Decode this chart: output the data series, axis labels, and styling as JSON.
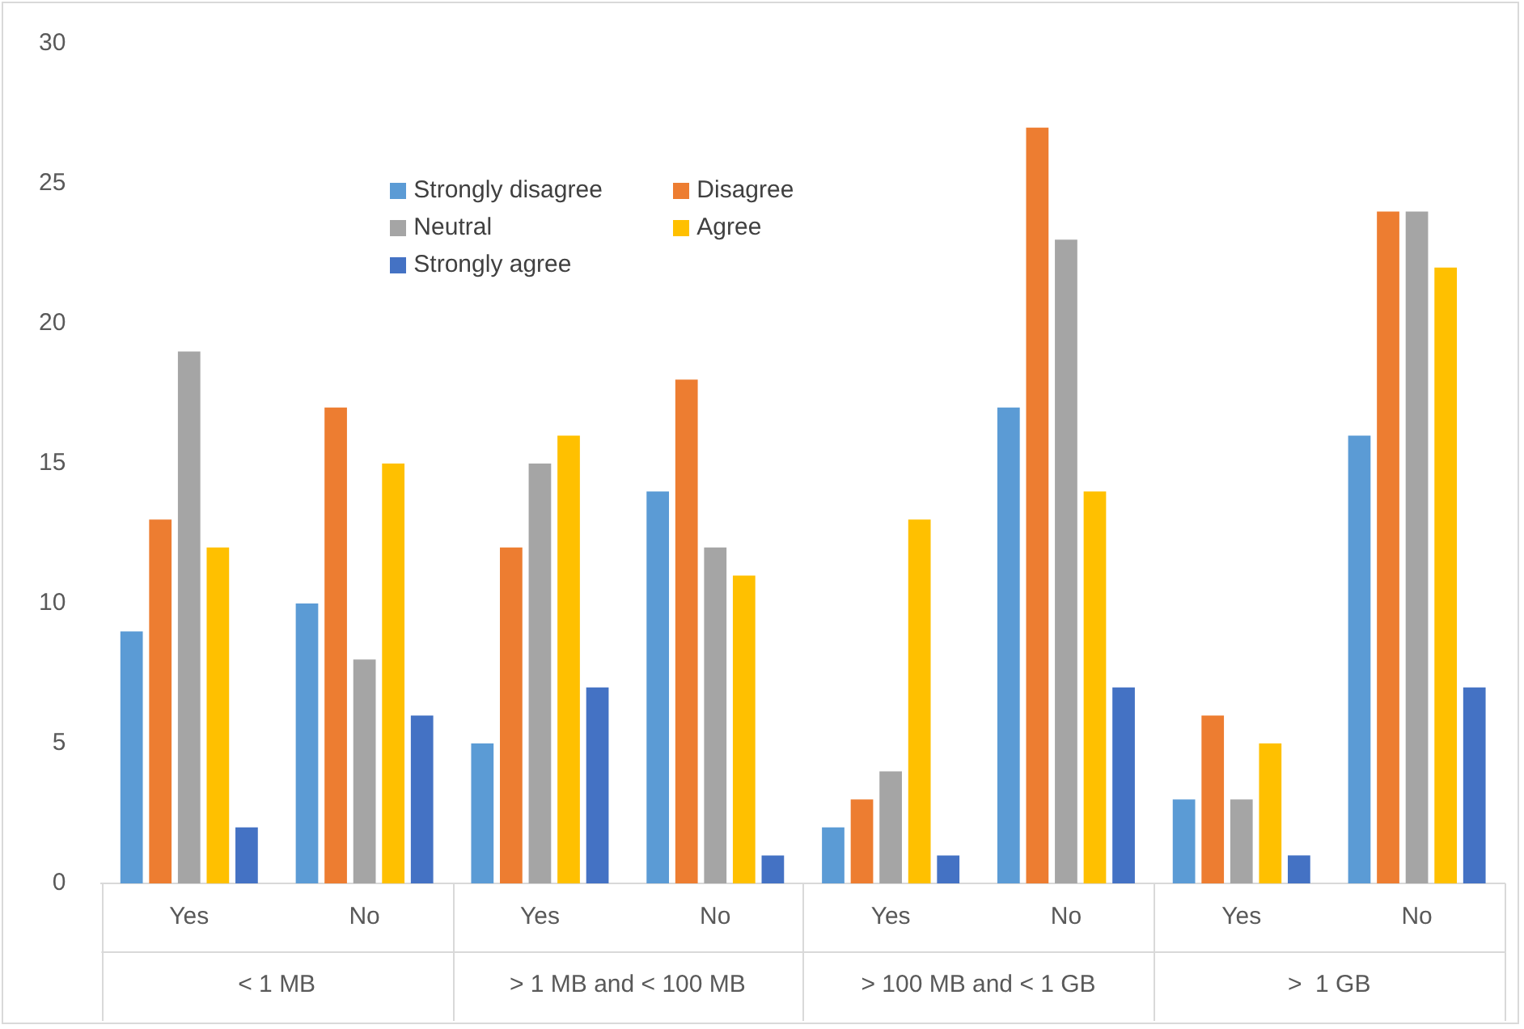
{
  "chart_data": {
    "type": "bar",
    "categories": [
      "Yes",
      "No",
      "Yes",
      "No",
      "Yes",
      "No",
      "Yes",
      "No"
    ],
    "annotations": [
      "< 1 MB",
      "> 1 MB and < 100 MB",
      "> 100 MB and < 1 GB",
      ">  1 GB"
    ],
    "series": [
      {
        "name": "Strongly disagree",
        "color": "#5b9bd5",
        "values": [
          9,
          10,
          5,
          14,
          2,
          17,
          3,
          16
        ]
      },
      {
        "name": "Disagree",
        "color": "#ed7d31",
        "values": [
          13,
          17,
          12,
          18,
          3,
          27,
          6,
          24
        ]
      },
      {
        "name": "Neutral",
        "color": "#a5a5a5",
        "values": [
          19,
          8,
          15,
          12,
          4,
          23,
          3,
          24
        ]
      },
      {
        "name": "Agree",
        "color": "#ffc000",
        "values": [
          12,
          15,
          16,
          11,
          13,
          14,
          5,
          22
        ]
      },
      {
        "name": "Strongly agree",
        "color": "#4472c4",
        "values": [
          2,
          6,
          7,
          1,
          1,
          7,
          1,
          7
        ]
      }
    ],
    "ylim": [
      0,
      30
    ],
    "yticks": [
      0,
      5,
      10,
      15,
      20,
      25,
      30
    ],
    "grid": false,
    "legend": "top left"
  }
}
